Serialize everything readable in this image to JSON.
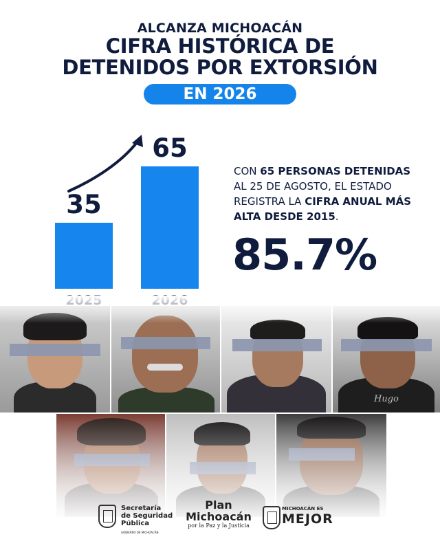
{
  "header": {
    "kicker": "ALCANZA MICHOACÁN",
    "title_line1": "CIFRA HISTÓRICA DE",
    "title_line2": "DETENIDOS POR EXTORSIÓN",
    "pill": "EN 2026"
  },
  "chart_data": {
    "type": "bar",
    "categories": [
      "2025",
      "2026"
    ],
    "values": [
      35,
      65
    ],
    "value_labels": [
      "35",
      "65"
    ],
    "ylim": [
      0,
      65
    ],
    "bar_color": "#1785ee"
  },
  "stat": {
    "prefix": "CON ",
    "bold1": "65 PERSONAS DETENIDAS",
    "mid": " AL 25 DE AGOSTO, EL ESTADO REGISTRA LA ",
    "bold2": "CIFRA ANUAL MÁS ALTA DESDE 2015",
    "suffix": ".",
    "percent": "85.7%"
  },
  "photos": {
    "shirt_text": "Hugo"
  },
  "footer": {
    "ssp_line1": "Secretaría",
    "ssp_line2": "de Seguridad",
    "ssp_line3": "Pública",
    "ssp_sub": "GOBIERNO DE MICHOACÁN",
    "plan_line1": "Plan",
    "plan_line2": "Michoacán",
    "plan_line3": "por la Paz y la Justicia",
    "mm_small": "MICHOACÁN ES",
    "mm_big": "MEJOR"
  },
  "colors": {
    "navy": "#101c3d",
    "accent": "#1584ea"
  }
}
